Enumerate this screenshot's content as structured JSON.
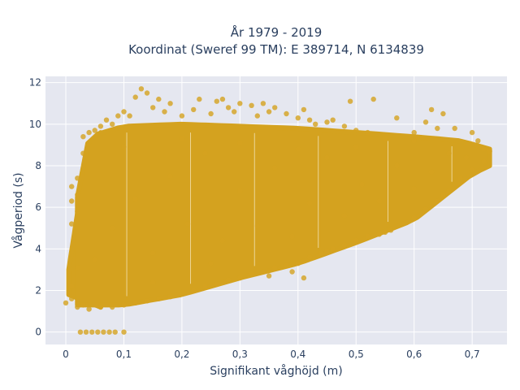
{
  "chart_data": {
    "type": "scatter",
    "title_line1": "År 1979 - 2019",
    "title_line2": "Koordinat (Sweref 99 TM): E 389714, N 6134839",
    "xlabel": "Signifikant våghöjd (m)",
    "ylabel": "Vågperiod (s)",
    "xlim": [
      -0.035,
      0.76
    ],
    "ylim": [
      -0.6,
      12.3
    ],
    "x_ticks": [
      0,
      0.1,
      0.2,
      0.3,
      0.4,
      0.5,
      0.6,
      0.7
    ],
    "x_tick_labels": [
      "0",
      "0,1",
      "0,2",
      "0,3",
      "0,4",
      "0,5",
      "0,6",
      "0,7"
    ],
    "y_ticks": [
      0,
      2,
      4,
      6,
      8,
      10,
      12
    ],
    "y_tick_labels": [
      "0",
      "2",
      "4",
      "6",
      "8",
      "10",
      "12"
    ],
    "grid": true,
    "legend": "none",
    "colors": {
      "marker": "#d4a21f",
      "plot_bg": "#e5e7f0",
      "grid": "#ffffff",
      "text": "#2a3f5f"
    },
    "series": [
      {
        "points": [
          [
            0.0,
            1.4
          ],
          [
            0.01,
            1.6
          ],
          [
            0.01,
            2.2
          ],
          [
            0.01,
            5.2
          ],
          [
            0.01,
            6.3
          ],
          [
            0.01,
            7.0
          ],
          [
            0.02,
            1.2
          ],
          [
            0.02,
            3.1
          ],
          [
            0.02,
            5.8
          ],
          [
            0.02,
            6.6
          ],
          [
            0.02,
            7.4
          ],
          [
            0.025,
            0.0
          ],
          [
            0.035,
            0.0
          ],
          [
            0.045,
            0.0
          ],
          [
            0.055,
            0.0
          ],
          [
            0.065,
            0.0
          ],
          [
            0.075,
            0.0
          ],
          [
            0.085,
            0.0
          ],
          [
            0.1,
            0.0
          ],
          [
            0.03,
            8.6
          ],
          [
            0.03,
            9.4
          ],
          [
            0.04,
            9.6
          ],
          [
            0.05,
            9.7
          ],
          [
            0.06,
            9.9
          ],
          [
            0.07,
            10.2
          ],
          [
            0.08,
            10.0
          ],
          [
            0.09,
            10.4
          ],
          [
            0.1,
            10.6
          ],
          [
            0.11,
            10.4
          ],
          [
            0.12,
            11.3
          ],
          [
            0.13,
            11.7
          ],
          [
            0.14,
            11.5
          ],
          [
            0.15,
            10.8
          ],
          [
            0.16,
            11.2
          ],
          [
            0.17,
            10.6
          ],
          [
            0.18,
            11.0
          ],
          [
            0.2,
            10.4
          ],
          [
            0.22,
            10.7
          ],
          [
            0.23,
            11.2
          ],
          [
            0.25,
            10.5
          ],
          [
            0.26,
            11.1
          ],
          [
            0.27,
            11.2
          ],
          [
            0.28,
            10.8
          ],
          [
            0.29,
            10.6
          ],
          [
            0.3,
            11.0
          ],
          [
            0.32,
            10.9
          ],
          [
            0.33,
            10.4
          ],
          [
            0.34,
            11.0
          ],
          [
            0.35,
            10.6
          ],
          [
            0.36,
            10.8
          ],
          [
            0.38,
            10.5
          ],
          [
            0.4,
            10.3
          ],
          [
            0.41,
            10.7
          ],
          [
            0.42,
            10.2
          ],
          [
            0.43,
            10.0
          ],
          [
            0.45,
            10.1
          ],
          [
            0.46,
            10.2
          ],
          [
            0.48,
            9.9
          ],
          [
            0.49,
            11.1
          ],
          [
            0.5,
            9.7
          ],
          [
            0.52,
            9.6
          ],
          [
            0.53,
            11.2
          ],
          [
            0.55,
            9.3
          ],
          [
            0.57,
            10.3
          ],
          [
            0.6,
            9.6
          ],
          [
            0.62,
            10.1
          ],
          [
            0.63,
            10.7
          ],
          [
            0.64,
            9.8
          ],
          [
            0.65,
            10.5
          ],
          [
            0.67,
            9.8
          ],
          [
            0.7,
            9.6
          ],
          [
            0.71,
            9.2
          ],
          [
            0.72,
            8.8
          ],
          [
            0.73,
            8.7
          ],
          [
            0.72,
            8.2
          ],
          [
            0.7,
            7.8
          ],
          [
            0.68,
            7.4
          ],
          [
            0.66,
            6.8
          ],
          [
            0.64,
            6.3
          ],
          [
            0.62,
            5.9
          ],
          [
            0.6,
            5.5
          ],
          [
            0.58,
            5.2
          ],
          [
            0.56,
            4.9
          ],
          [
            0.54,
            4.7
          ],
          [
            0.52,
            4.6
          ],
          [
            0.5,
            4.4
          ],
          [
            0.48,
            4.2
          ],
          [
            0.46,
            4.0
          ],
          [
            0.44,
            3.8
          ],
          [
            0.42,
            3.6
          ],
          [
            0.4,
            3.3
          ],
          [
            0.38,
            3.2
          ],
          [
            0.36,
            3.1
          ],
          [
            0.34,
            2.9
          ],
          [
            0.32,
            2.8
          ],
          [
            0.3,
            2.6
          ],
          [
            0.28,
            2.5
          ],
          [
            0.26,
            2.3
          ],
          [
            0.24,
            2.2
          ],
          [
            0.22,
            2.0
          ],
          [
            0.2,
            1.9
          ],
          [
            0.18,
            1.7
          ],
          [
            0.16,
            1.6
          ],
          [
            0.14,
            1.5
          ],
          [
            0.12,
            1.4
          ],
          [
            0.1,
            1.3
          ],
          [
            0.08,
            1.2
          ],
          [
            0.06,
            1.2
          ],
          [
            0.04,
            1.1
          ],
          [
            0.03,
            1.3
          ],
          [
            0.41,
            2.6
          ],
          [
            0.39,
            2.9
          ],
          [
            0.05,
            3.5
          ],
          [
            0.08,
            5.0
          ],
          [
            0.12,
            6.4
          ],
          [
            0.15,
            3.8
          ],
          [
            0.18,
            7.5
          ],
          [
            0.21,
            5.2
          ],
          [
            0.24,
            8.6
          ],
          [
            0.27,
            4.4
          ],
          [
            0.3,
            6.8
          ],
          [
            0.33,
            5.1
          ],
          [
            0.36,
            7.9
          ],
          [
            0.39,
            4.6
          ],
          [
            0.42,
            6.2
          ],
          [
            0.45,
            8.4
          ],
          [
            0.48,
            5.6
          ],
          [
            0.51,
            7.1
          ],
          [
            0.54,
            6.3
          ],
          [
            0.57,
            8.0
          ],
          [
            0.6,
            6.9
          ],
          [
            0.63,
            7.7
          ],
          [
            0.66,
            8.6
          ],
          [
            0.69,
            8.4
          ],
          [
            0.1,
            8.9
          ],
          [
            0.2,
            9.3
          ],
          [
            0.3,
            9.1
          ],
          [
            0.4,
            8.8
          ],
          [
            0.5,
            8.9
          ],
          [
            0.6,
            9.2
          ],
          [
            0.35,
            2.7
          ],
          [
            0.25,
            3.3
          ],
          [
            0.15,
            2.4
          ],
          [
            0.45,
            3.9
          ],
          [
            0.55,
            4.8
          ],
          [
            0.65,
            6.6
          ]
        ],
        "density_regions": [
          {
            "x0": 0.005,
            "x1": 0.06,
            "lo": [
              [
                0.005,
                1.8
              ],
              [
                0.06,
                1.2
              ]
            ],
            "hi": [
              [
                0.005,
                3.0
              ],
              [
                0.03,
                7.5
              ],
              [
                0.06,
                9.6
              ]
            ]
          },
          {
            "x0": 0.02,
            "x1": 0.73,
            "lo": [
              [
                0.02,
                1.3
              ],
              [
                0.1,
                1.3
              ],
              [
                0.2,
                1.8
              ],
              [
                0.3,
                2.6
              ],
              [
                0.4,
                3.3
              ],
              [
                0.5,
                4.3
              ],
              [
                0.6,
                5.4
              ],
              [
                0.7,
                7.6
              ],
              [
                0.73,
                8.0
              ]
            ],
            "hi": [
              [
                0.02,
                6.5
              ],
              [
                0.04,
                9.4
              ],
              [
                0.1,
                9.9
              ],
              [
                0.2,
                10.0
              ],
              [
                0.3,
                9.9
              ],
              [
                0.4,
                9.8
              ],
              [
                0.5,
                9.6
              ],
              [
                0.6,
                9.4
              ],
              [
                0.68,
                9.2
              ],
              [
                0.73,
                8.8
              ]
            ]
          }
        ]
      }
    ]
  }
}
